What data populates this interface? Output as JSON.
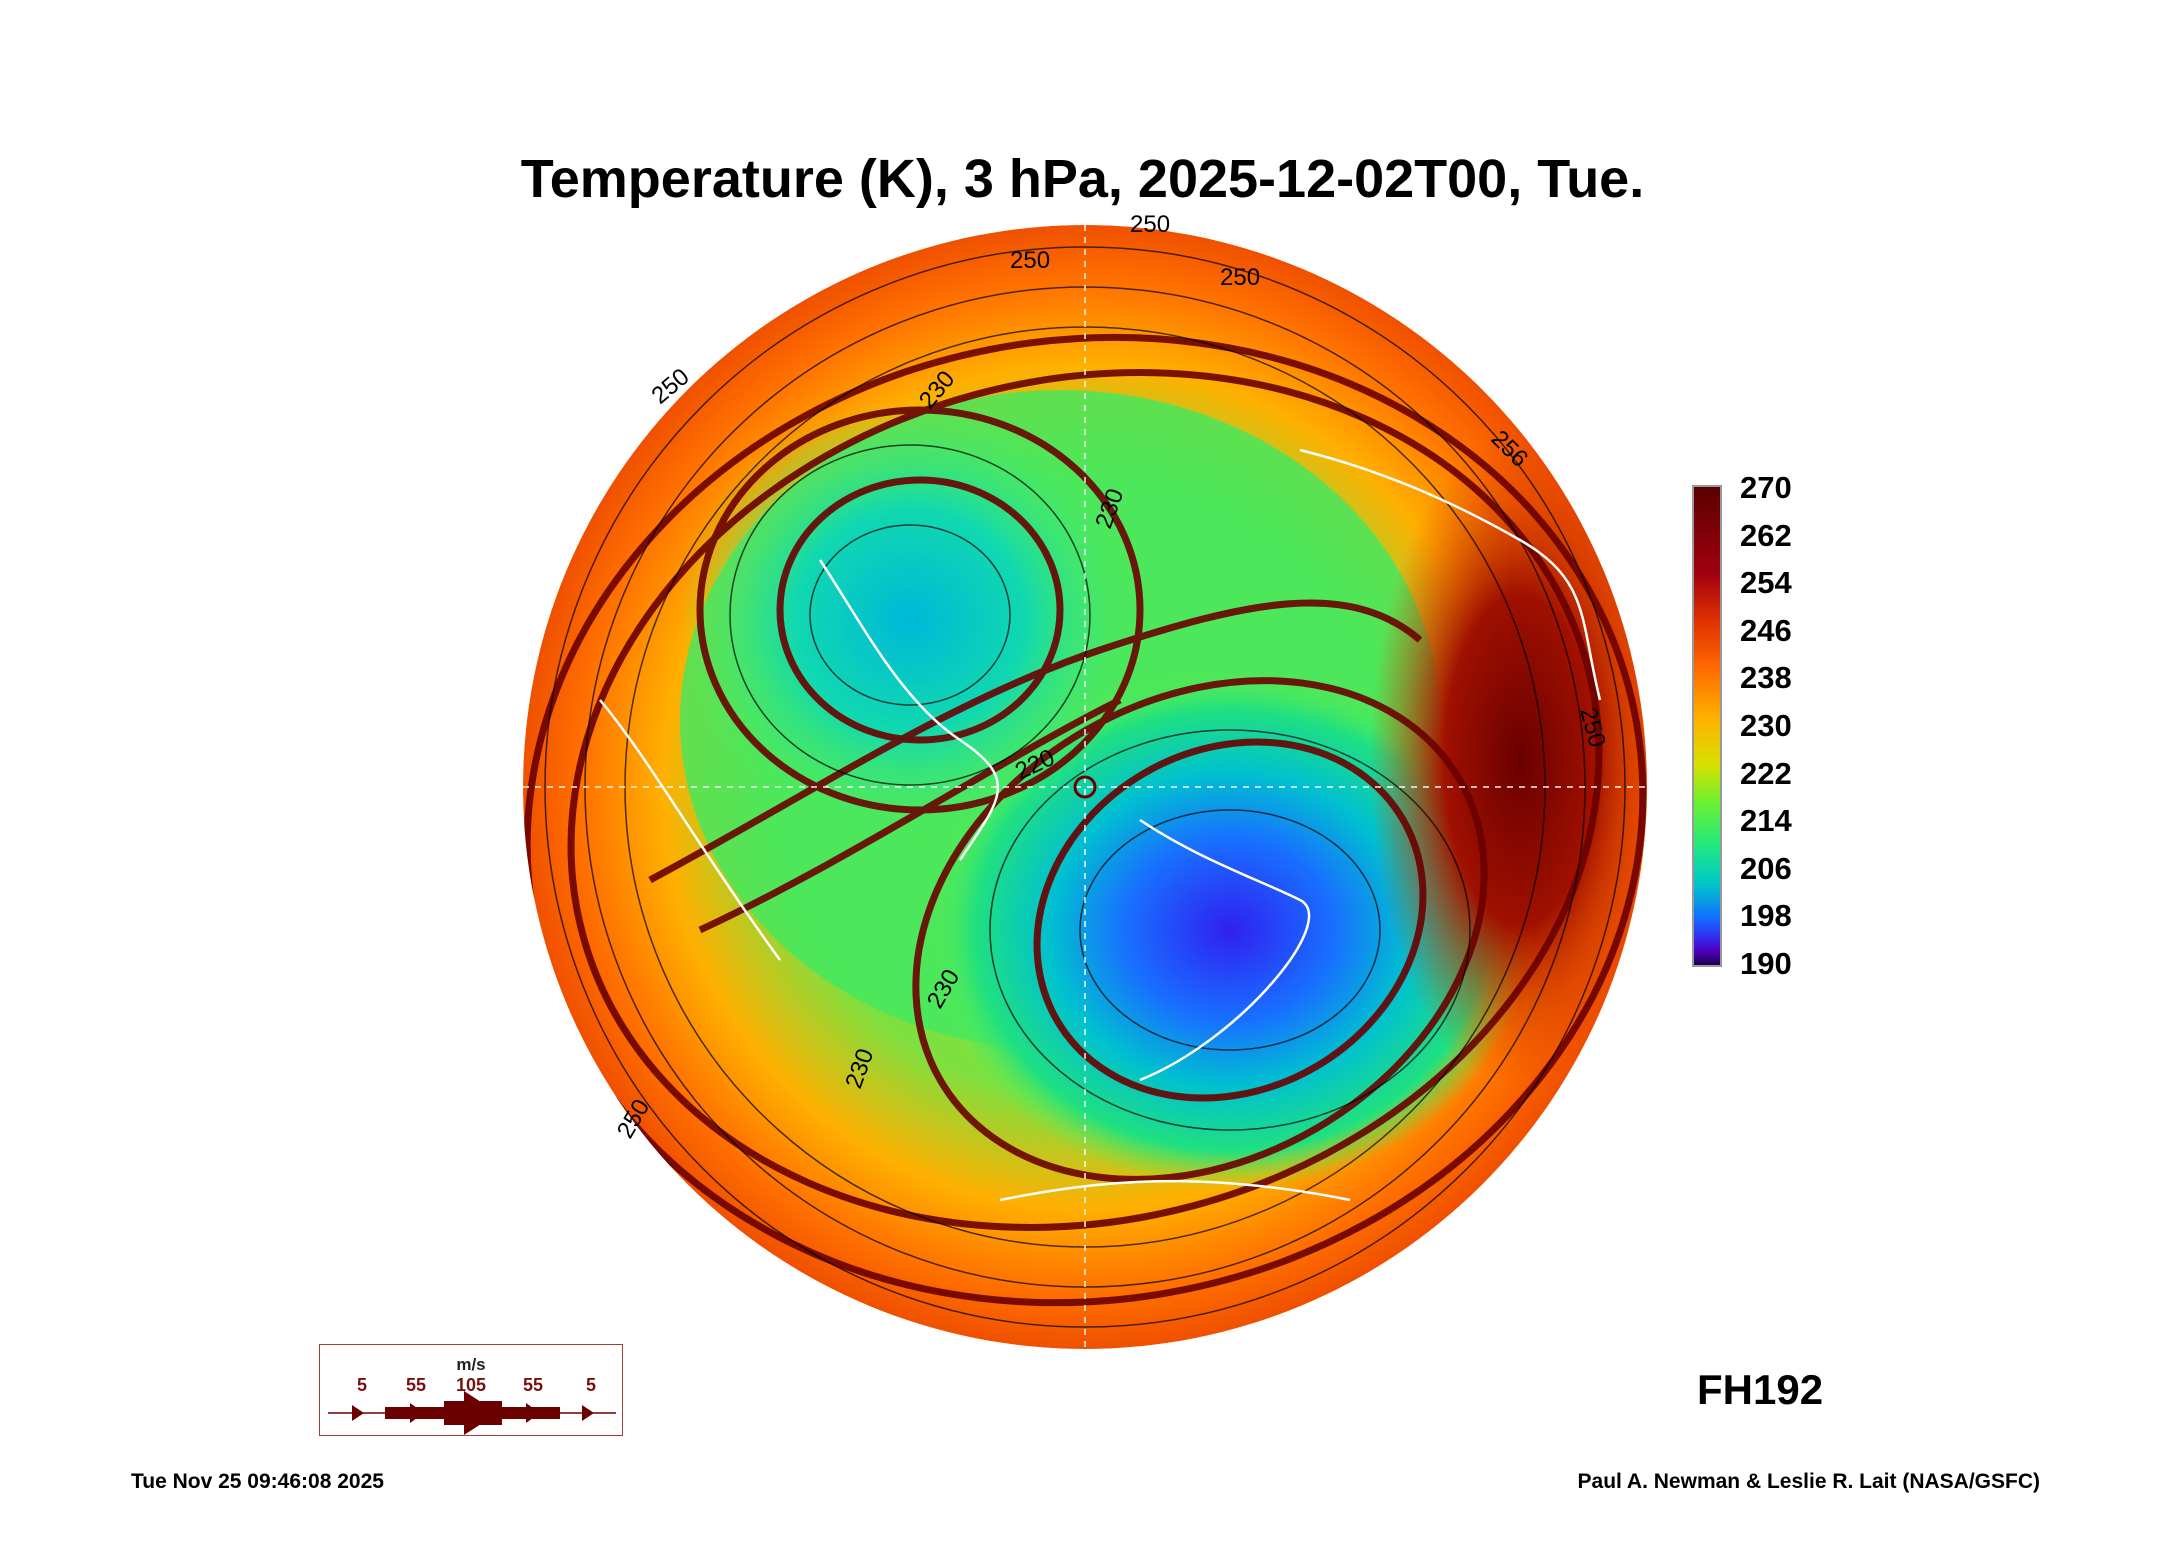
{
  "title": "Temperature (K), 3 hPa, 2025-12-02T00, Tue.",
  "forecast_hour": "FH192",
  "timestamp": "Tue Nov 25 09:46:08 2025",
  "credit": "Paul A. Newman & Leslie R. Lait (NASA/GSFC)",
  "wind_legend": {
    "unit": "m/s",
    "values": [
      "5",
      "55",
      "105",
      "55",
      "5"
    ]
  },
  "colors": {
    "wind": "#6a0000",
    "coast": "#ffffff",
    "contour": "#000000"
  },
  "chart_data": {
    "type": "heatmap",
    "projection": "north polar stereographic",
    "title": "Temperature (K), 3 hPa, 2025-12-02T00, Tue.",
    "colorbar": {
      "min": 190,
      "max": 270,
      "ticks": [
        270,
        262,
        254,
        246,
        238,
        230,
        222,
        214,
        206,
        198,
        190
      ]
    },
    "contour_labels": [
      "250",
      "250",
      "250",
      "256",
      "230",
      "230",
      "220",
      "230",
      "230",
      "250",
      "250",
      "250"
    ],
    "features": {
      "cold_center_K": 206,
      "warm_max_K": 266
    }
  }
}
